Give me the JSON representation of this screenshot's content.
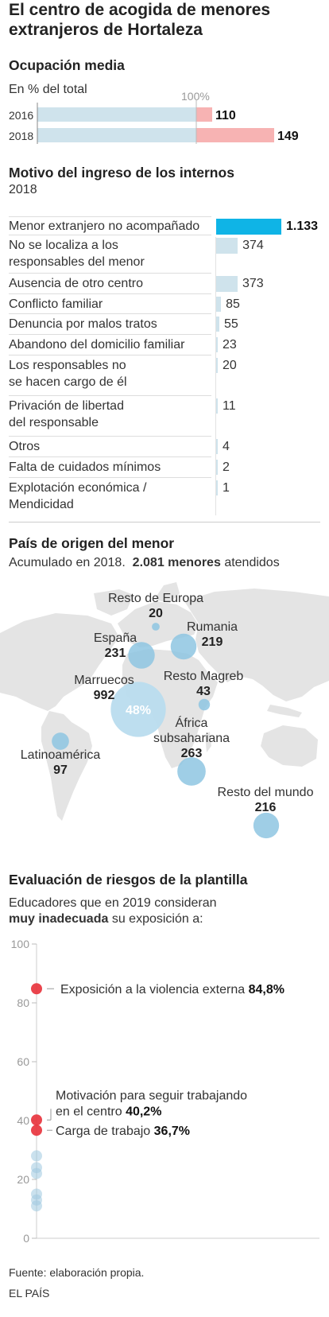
{
  "title": "El centro de acogida de menores extranjeros de Hortaleza",
  "occupancy": {
    "heading": "Ocupación media",
    "subheading": "En % del total",
    "reference_label": "100%",
    "chart_data": {
      "type": "bar",
      "orientation": "horizontal",
      "categories": [
        "2016",
        "2018"
      ],
      "values": [
        110,
        149
      ],
      "unit": "% del total",
      "reference": 100,
      "colors": {
        "under": "#cfe3ec",
        "over": "#f7b3b3"
      }
    }
  },
  "reasons": {
    "heading": "Motivo del ingreso de los internos",
    "subheading": "2018",
    "chart_data": {
      "type": "bar",
      "orientation": "horizontal",
      "categories": [
        "Menor extranjero no acompañado",
        "No se localiza a los responsables del menor",
        "Ausencia de otro centro",
        "Conflicto familiar",
        "Denuncia por malos tratos",
        "Abandono del domicilio familiar",
        "Los responsables no se hacen cargo de él",
        "Privación de libertad del responsable",
        "Otros",
        "Falta de cuidados mínimos",
        "Explotación económica / Mendicidad"
      ],
      "values": [
        1133,
        374,
        373,
        85,
        55,
        23,
        20,
        11,
        4,
        2,
        1
      ],
      "value_labels": [
        "1.133",
        "374",
        "373",
        "85",
        "55",
        "23",
        "20",
        "11",
        "4",
        "2",
        "1"
      ],
      "colors": {
        "highlight": "#0fb4e6",
        "default": "#cfe3ec"
      }
    },
    "row_labels": [
      [
        "Menor extranjero no acompañado"
      ],
      [
        "No se localiza a los",
        "responsables del menor"
      ],
      [
        "Ausencia de otro centro"
      ],
      [
        "Conflicto familiar"
      ],
      [
        "Denuncia por malos tratos"
      ],
      [
        "Abandono del domicilio familiar"
      ],
      [
        "Los responsables no",
        "se hacen cargo de él"
      ],
      [
        "Privación de libertad",
        "del responsable"
      ],
      [
        "Otros"
      ],
      [
        "Falta de cuidados mínimos"
      ],
      [
        "Explotación económica /",
        "Mendicidad"
      ]
    ]
  },
  "origin": {
    "heading": "País de origen del menor",
    "subheading_prefix": "Acumulado en 2018.",
    "subheading_bold": "2.081 menores",
    "subheading_suffix": "atendidos",
    "chart_data": {
      "type": "bubble-map",
      "regions": [
        {
          "name": "Resto de Europa",
          "value": 20,
          "value_label": "20"
        },
        {
          "name": "España",
          "value": 231,
          "value_label": "231"
        },
        {
          "name": "Rumania",
          "value": 219,
          "value_label": "219"
        },
        {
          "name": "Marruecos",
          "value": 992,
          "value_label": "992",
          "share_label": "48%"
        },
        {
          "name": "Resto Magreb",
          "value": 43,
          "value_label": "43"
        },
        {
          "name": "África subsahariana",
          "value": 263,
          "value_label": "263"
        },
        {
          "name": "Latinoamérica",
          "value": 97,
          "value_label": "97"
        },
        {
          "name": "Resto del mundo",
          "value": 216,
          "value_label": "216"
        }
      ],
      "total": 2081,
      "colors": {
        "land": "#e4e4e4",
        "bubble": "#8ec6e2",
        "bubble_main": "#b9dcee"
      }
    },
    "labels": {
      "resto_europa": "Resto de Europa",
      "espana": "España",
      "rumania": "Rumania",
      "marruecos": "Marruecos",
      "resto_magreb": "Resto Magreb",
      "africa_line1": "África",
      "africa_line2": "subsahariana",
      "latinoamerica": "Latinoamérica",
      "resto_mundo": "Resto del mundo"
    }
  },
  "risks": {
    "heading": "Evaluación de riesgos de la plantilla",
    "subheading_line1": "Educadores que en 2019 consideran",
    "subheading_bold": "muy inadecuada",
    "subheading_suffix": "su exposición a:",
    "chart_data": {
      "type": "scatter",
      "ylim": [
        0,
        100
      ],
      "yticks": [
        0,
        20,
        40,
        60,
        80,
        100
      ],
      "highlighted": [
        {
          "label": "Exposición a la violencia externa",
          "value": 84.8,
          "value_label": "84,8%"
        },
        {
          "label": "Motivación para seguir trabajando en el centro",
          "value": 40.2,
          "value_label": "40,2%"
        },
        {
          "label": "Carga de trabajo",
          "value": 36.7,
          "value_label": "36,7%"
        }
      ],
      "other_values": [
        28,
        24,
        22,
        15,
        13,
        11
      ],
      "colors": {
        "highlight": "#e8313a",
        "other": "#9fc8e0"
      }
    },
    "labels": {
      "violence": "Exposición a la violencia externa",
      "motivation_line1": "Motivación para seguir trabajando",
      "motivation_line2": "en el centro",
      "workload": "Carga de trabajo"
    }
  },
  "footer": {
    "source": "Fuente: elaboración propia.",
    "publisher": "EL PAÍS"
  }
}
